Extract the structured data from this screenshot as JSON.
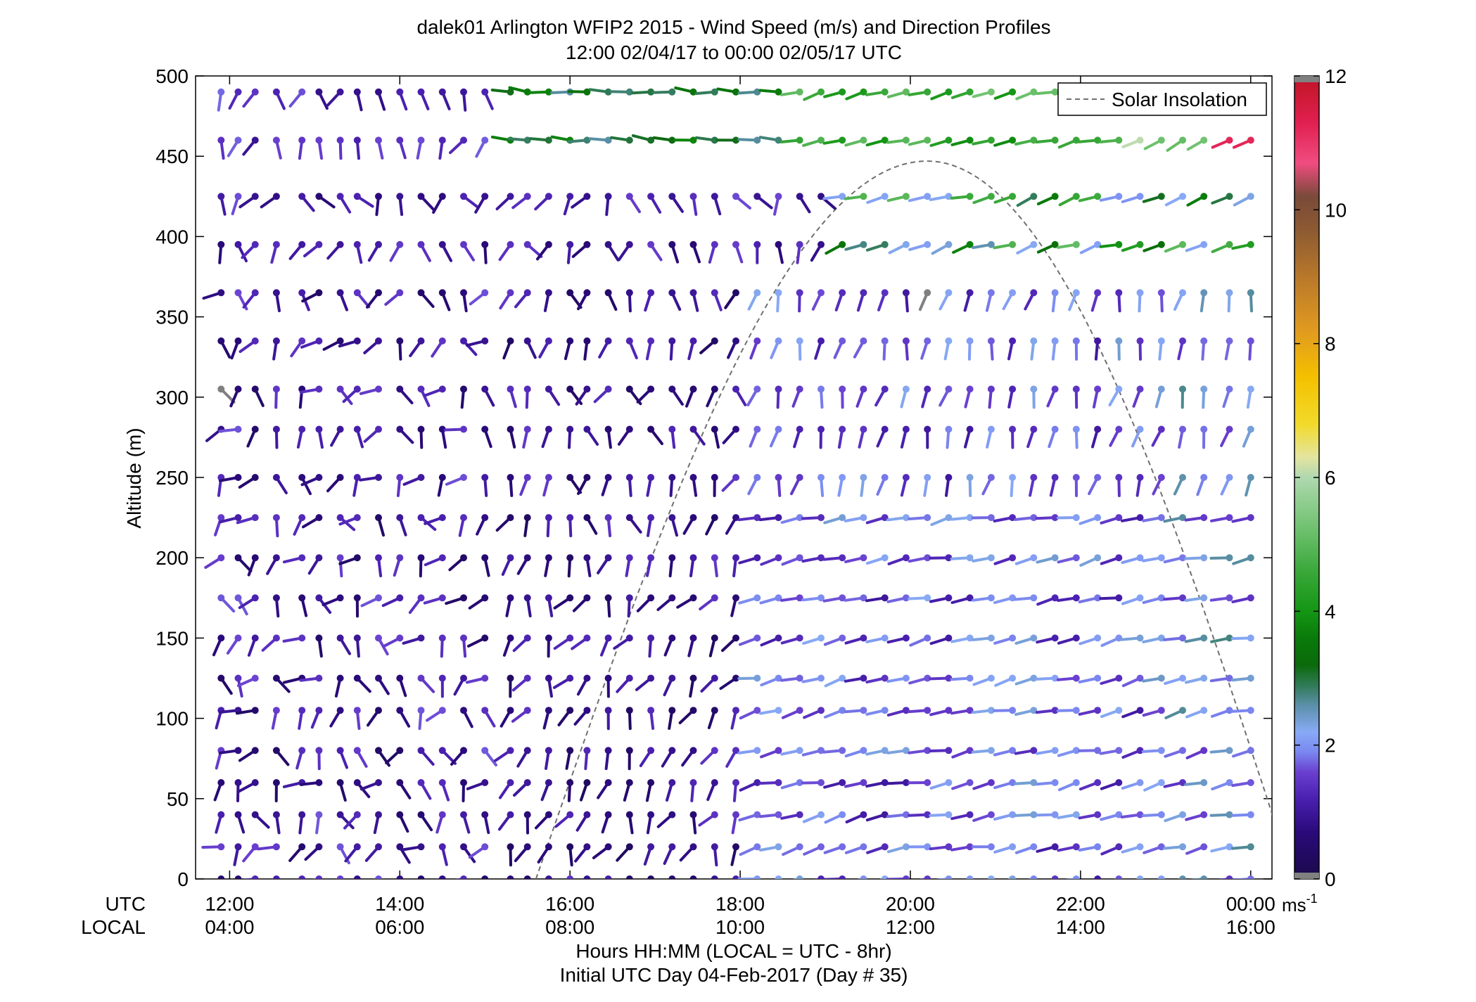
{
  "chart_data": {
    "type": "wind_barb_profile",
    "title": "dalek01 Arlington WFIP2 2015 - Wind Speed (m/s) and Direction Profiles",
    "subtitle": "12:00 02/04/17 to 00:00 02/05/17  UTC",
    "ylabel": "Altitude (m)",
    "ylim": [
      0,
      500
    ],
    "y_ticks": [
      "0",
      "50",
      "100",
      "150",
      "200",
      "250",
      "300",
      "350",
      "400",
      "450",
      "500"
    ],
    "x_range_hours_utc": [
      11.6,
      24.25
    ],
    "x_ticks": [
      {
        "utc_hour": 12,
        "utc": "12:00",
        "local": "04:00"
      },
      {
        "utc_hour": 14,
        "utc": "14:00",
        "local": "06:00"
      },
      {
        "utc_hour": 16,
        "utc": "16:00",
        "local": "08:00"
      },
      {
        "utc_hour": 18,
        "utc": "18:00",
        "local": "10:00"
      },
      {
        "utc_hour": 20,
        "utc": "20:00",
        "local": "12:00"
      },
      {
        "utc_hour": 22,
        "utc": "22:00",
        "local": "14:00"
      },
      {
        "utc_hour": 24,
        "utc": "00:00",
        "local": "16:00"
      }
    ],
    "row_label_utc": "UTC",
    "row_label_local": "LOCAL",
    "xlabel": "Hours HH:MM  (LOCAL = UTC - 8hr)",
    "xlabel2": "Initial UTC Day 04-Feb-2017 (Day # 35)",
    "legend": {
      "label": "Solar Insolation",
      "position": "top-right"
    },
    "colorbar": {
      "min": 0,
      "max": 12,
      "ticks": [
        "0",
        "2",
        "4",
        "6",
        "8",
        "10",
        "12"
      ],
      "unit": "ms",
      "unit_superscript": "-1"
    },
    "solar_insolation": {
      "start_utc_hour": 15.6,
      "end_utc_hour": 24.5,
      "peak_utc_hour": 20.2,
      "peak_altitude_m": 447
    },
    "profile_heights_m": [
      0,
      20,
      40,
      60,
      80,
      105,
      125,
      150,
      175,
      200,
      225,
      250,
      280,
      305,
      335,
      365,
      395,
      425,
      460,
      490
    ],
    "profile_times_utc_hour": [
      11.9,
      12.1,
      12.3,
      12.55,
      12.85,
      13.05,
      13.3,
      13.5,
      13.75,
      14.0,
      14.25,
      14.5,
      14.75,
      15.0,
      15.3,
      15.5,
      15.75,
      16.0,
      16.2,
      16.45,
      16.7,
      16.95,
      17.2,
      17.45,
      17.7,
      17.95,
      18.2,
      18.45,
      18.7,
      18.95,
      19.2,
      19.45,
      19.7,
      19.95,
      20.2,
      20.45,
      20.7,
      20.95,
      21.2,
      21.45,
      21.7,
      21.95,
      22.2,
      22.45,
      22.7,
      22.95,
      23.2,
      23.45,
      23.75,
      24.0
    ],
    "barb_encoding": "direction_deg is the compass bearing the barb line points toward from the dot (0 = up/north, 90 = right/east); speed in m/s sets the color"
  },
  "colors": {
    "dashed_line": "#707070",
    "bad_data": "#808080",
    "colormap_stops": [
      [
        0.0,
        "#1a0a4a"
      ],
      [
        0.7,
        "#2a0a7a"
      ],
      [
        1.2,
        "#4a20b0"
      ],
      [
        1.6,
        "#6a40d0"
      ],
      [
        1.9,
        "#7a88f0"
      ],
      [
        2.2,
        "#88aaf5"
      ],
      [
        2.6,
        "#5a8fa8"
      ],
      [
        2.9,
        "#2f7a55"
      ],
      [
        3.2,
        "#0a6a0a"
      ],
      [
        3.6,
        "#0a7a0a"
      ],
      [
        4.0,
        "#149614"
      ],
      [
        4.6,
        "#3aa83a"
      ],
      [
        5.2,
        "#6cc06c"
      ],
      [
        5.8,
        "#9ed29e"
      ],
      [
        6.0,
        "#b0d8b0"
      ],
      [
        6.3,
        "#e4e4a0"
      ],
      [
        6.8,
        "#f2da2a"
      ],
      [
        7.5,
        "#f4c000"
      ],
      [
        8.2,
        "#e09a20"
      ],
      [
        9.0,
        "#b8782a"
      ],
      [
        9.7,
        "#8c5a32"
      ],
      [
        10.2,
        "#7a4a3a"
      ],
      [
        10.7,
        "#f04c80"
      ],
      [
        11.3,
        "#e02050"
      ],
      [
        11.8,
        "#c81830"
      ],
      [
        12.0,
        "#c01030"
      ]
    ]
  }
}
